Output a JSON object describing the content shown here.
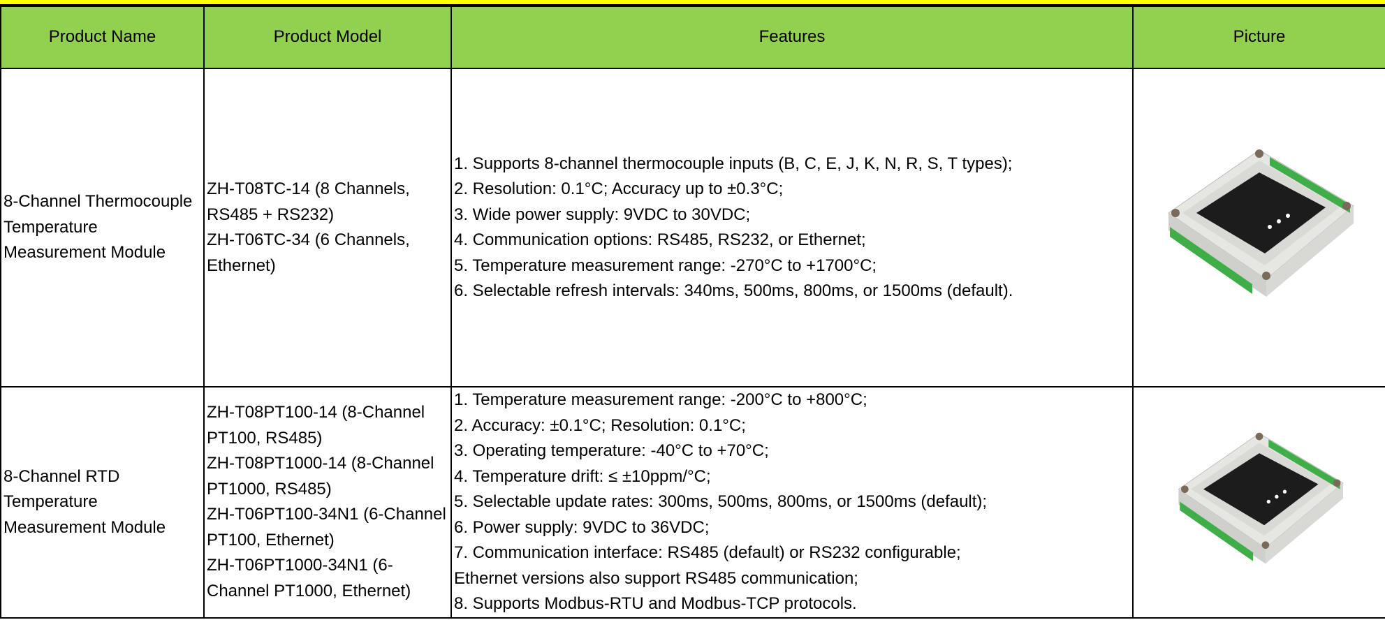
{
  "header": {
    "columns": [
      "Product Name",
      "Product Model",
      "Features",
      "Picture"
    ]
  },
  "table": {
    "rows": [
      {
        "name": "8-Channel Thermocouple Temperature Measurement Module",
        "models": [
          "ZH-T08TC-14 (8 Channels, RS485 + RS232)",
          "ZH-T06TC-34 (6 Channels, Ethernet)"
        ],
        "features": [
          "1. Supports 8-channel thermocouple inputs (B, C, E, J, K, N, R, S, T types);",
          "2. Resolution: 0.1°C; Accuracy up to ±0.3°C;",
          "3. Wide power supply: 9VDC to 30VDC;",
          "4. Communication options: RS485, RS232, or Ethernet;",
          "5. Temperature measurement range: -270°C to +1700°C;",
          "6. Selectable refresh intervals: 340ms, 500ms, 800ms, or 1500ms (default)."
        ]
      },
      {
        "name": "8-Channel RTD Temperature Measurement Module",
        "models": [
          "ZH-T08PT100-14 (8-Channel PT100, RS485)",
          "ZH-T08PT1000-14 (8-Channel PT1000, RS485)",
          "ZH-T06PT100-34N1 (6-Channel PT100, Ethernet)",
          "ZH-T06PT1000-34N1 (6-Channel PT1000, Ethernet)"
        ],
        "features": [
          "1. Temperature measurement range: -200°C to +800°C;",
          "2. Accuracy: ±0.1°C; Resolution: 0.1°C;",
          "3. Operating temperature: -40°C to +70°C;",
          "4. Temperature drift: ≤ ±10ppm/°C;",
          "5. Selectable update rates: 300ms, 500ms, 800ms, or 1500ms (default);",
          "6. Power supply: 9VDC to 36VDC;",
          "7. Communication interface: RS485 (default) or RS232 configurable;",
          "Ethernet versions also support RS485 communication;",
          "8. Supports Modbus-RTU and Modbus-TCP protocols."
        ]
      }
    ]
  }
}
